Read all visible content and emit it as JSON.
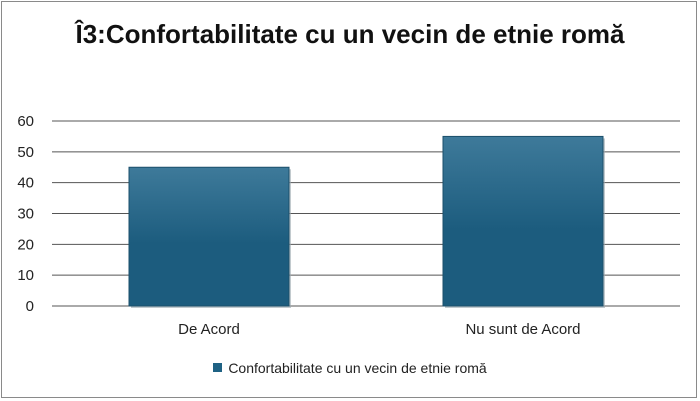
{
  "chart_data": {
    "type": "bar",
    "title": "Î3:Confortabilitate cu un vecin de etnie romă",
    "categories": [
      "De Acord",
      "Nu sunt de Acord"
    ],
    "series": [
      {
        "name": "Confortabilitate cu un vecin de etnie romă",
        "values": [
          45,
          55
        ]
      }
    ],
    "ylim": [
      0,
      60
    ],
    "yticks": [
      0,
      10,
      20,
      30,
      40,
      50,
      60
    ],
    "grid": true,
    "legend": "bottom",
    "colors": {
      "bar_top": "#3e7a9a",
      "bar_bottom": "#1c5c7e",
      "grid": "#555555"
    }
  }
}
